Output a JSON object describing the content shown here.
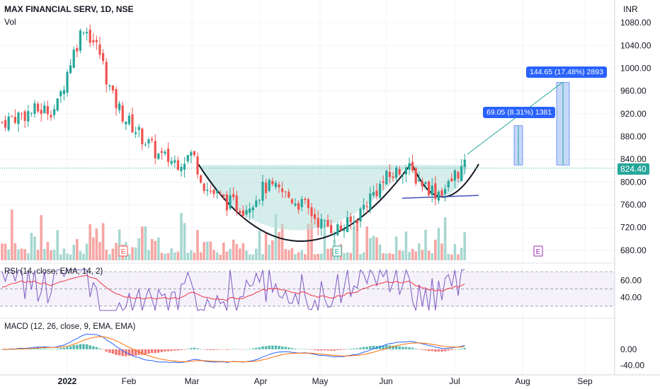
{
  "header": {
    "title": "MAX FINANCIAL SERV, 1D, NSE",
    "volume_label": "Vol",
    "currency": "INR"
  },
  "indicators": {
    "rsi_label": "RSI (14, close, EMA, 14, 2)",
    "macd_label": "MACD (12, 26, close, 9, EMA, EMA)"
  },
  "annotations": {
    "box1": "69.05 (8.31%) 1381",
    "box2": "144.65 (17.48%) 2893",
    "earnings_marker": "E"
  },
  "current_price": "824.40",
  "colors": {
    "up": "#26a69a",
    "down": "#ef5350",
    "fill": "#b2dfdb",
    "rsi": "#7e57c2",
    "macd": "#2962ff",
    "signal": "#ff6d00",
    "target": "#2962ff"
  },
  "chart_data": {
    "type": "candlestick",
    "x_ticks": [
      "2022",
      "Feb",
      "Mar",
      "Apr",
      "May",
      "Jun",
      "Jul",
      "Aug",
      "Sep"
    ],
    "y_ticks": [
      680,
      720,
      760,
      800,
      840,
      880,
      920,
      960,
      1000,
      1040,
      1080
    ],
    "ylim": [
      660,
      1110
    ],
    "rsi_ticks": [
      40,
      60
    ],
    "macd_ticks": [
      "0.00",
      "-40.00"
    ],
    "breakout_level": 830,
    "support_level": 774
  }
}
